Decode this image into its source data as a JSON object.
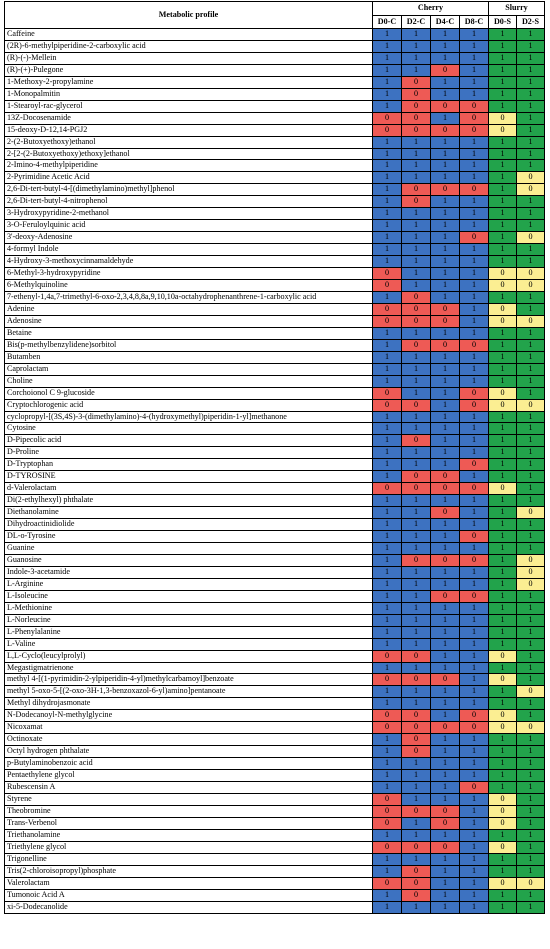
{
  "header": {
    "profile_label": "Metabolic profile",
    "cherry_label": "Cherry",
    "slurry_label": "Slurry",
    "columns": [
      "D0-C",
      "D2-C",
      "D4-C",
      "D8-C",
      "D0-S",
      "D2-S"
    ]
  },
  "colors": {
    "one_cherry": "#3d72c1",
    "zero_cherry": "#ee5a55",
    "one_slurry": "#22a34b",
    "zero_slurry": "#fbee92"
  },
  "rows": [
    {
      "name": "Caffeine",
      "values": [
        "1",
        "1",
        "1",
        "1",
        "1",
        "1"
      ]
    },
    {
      "name": "(2R)-6-methylpiperidine-2-carboxylic acid",
      "values": [
        "1",
        "1",
        "1",
        "1",
        "1",
        "1"
      ]
    },
    {
      "name": "(R)-(-)-Mellein",
      "values": [
        "1",
        "1",
        "1",
        "1",
        "1",
        "1"
      ]
    },
    {
      "name": "(R)-(+)-Pulegone",
      "values": [
        "1",
        "1",
        "0",
        "1",
        "1",
        "1"
      ]
    },
    {
      "name": "1-Methoxy-2-propylamine",
      "values": [
        "1",
        "0",
        "1",
        "1",
        "1",
        "1"
      ]
    },
    {
      "name": "1-Monopalmitin",
      "values": [
        "1",
        "0",
        "1",
        "1",
        "1",
        "1"
      ]
    },
    {
      "name": "1-Stearoyl-rac-glycerol",
      "values": [
        "1",
        "0",
        "0",
        "0",
        "1",
        "1"
      ]
    },
    {
      "name": "13Z-Docosenamide",
      "values": [
        "0",
        "0",
        "1",
        "0",
        "0",
        "1"
      ]
    },
    {
      "name": "15-deoxy-D-12,14-PGJ2",
      "values": [
        "0",
        "0",
        "0",
        "0",
        "0",
        "1"
      ]
    },
    {
      "name": "2-(2-Butoxyethoxy)ethanol",
      "values": [
        "1",
        "1",
        "1",
        "1",
        "1",
        "1"
      ]
    },
    {
      "name": "2-[2-(2-Butoxyethoxy)ethoxy]ethanol",
      "values": [
        "1",
        "1",
        "1",
        "1",
        "1",
        "1"
      ]
    },
    {
      "name": "2-Imino-4-methylpiperidine",
      "values": [
        "1",
        "1",
        "1",
        "1",
        "1",
        "1"
      ]
    },
    {
      "name": "2-Pyrimidine Acetic Acid",
      "values": [
        "1",
        "1",
        "1",
        "1",
        "1",
        "0"
      ]
    },
    {
      "name": "2,6-Di-tert-butyl-4-[(dimethylamino)methyl]phenol",
      "values": [
        "1",
        "0",
        "0",
        "0",
        "1",
        "0"
      ]
    },
    {
      "name": "2,6-Di-tert-butyl-4-nitrophenol",
      "values": [
        "1",
        "0",
        "1",
        "1",
        "1",
        "1"
      ]
    },
    {
      "name": "3-Hydroxypyridine-2-methanol",
      "values": [
        "1",
        "1",
        "1",
        "1",
        "1",
        "1"
      ]
    },
    {
      "name": "3-O-Feruloylquinic acid",
      "values": [
        "1",
        "1",
        "1",
        "1",
        "1",
        "1"
      ]
    },
    {
      "name": "3'-deoxy-Adenosine",
      "values": [
        "1",
        "1",
        "1",
        "0",
        "1",
        "0"
      ]
    },
    {
      "name": "4-formyl Indole",
      "values": [
        "1",
        "1",
        "1",
        "1",
        "1",
        "1"
      ]
    },
    {
      "name": "4-Hydroxy-3-methoxycinnamaldehyde",
      "values": [
        "1",
        "1",
        "1",
        "1",
        "1",
        "1"
      ]
    },
    {
      "name": "6-Methyl-3-hydroxypyridine",
      "values": [
        "0",
        "1",
        "1",
        "1",
        "0",
        "0"
      ]
    },
    {
      "name": "6-Methylquinoline",
      "values": [
        "0",
        "1",
        "1",
        "1",
        "0",
        "0"
      ]
    },
    {
      "name": "7-ethenyl-1,4a,7-trimethyl-6-oxo-2,3,4,8,8a,9,10,10a-octahydrophenanthrene-1-carboxylic acid",
      "values": [
        "1",
        "0",
        "1",
        "1",
        "1",
        "1"
      ]
    },
    {
      "name": "Adenine",
      "values": [
        "0",
        "0",
        "0",
        "1",
        "0",
        "1"
      ]
    },
    {
      "name": "Adenosine",
      "values": [
        "0",
        "0",
        "0",
        "1",
        "0",
        "0"
      ]
    },
    {
      "name": "Betaine",
      "values": [
        "1",
        "1",
        "1",
        "1",
        "1",
        "1"
      ]
    },
    {
      "name": "Bis(p-methylbenzylidene)sorbitol",
      "values": [
        "1",
        "0",
        "0",
        "0",
        "1",
        "1"
      ]
    },
    {
      "name": "Butamben",
      "values": [
        "1",
        "1",
        "1",
        "1",
        "1",
        "1"
      ]
    },
    {
      "name": "Caprolactam",
      "values": [
        "1",
        "1",
        "1",
        "1",
        "1",
        "1"
      ]
    },
    {
      "name": "Choline",
      "values": [
        "1",
        "1",
        "1",
        "1",
        "1",
        "1"
      ]
    },
    {
      "name": "Corchoionol C 9-glucoside",
      "values": [
        "0",
        "1",
        "1",
        "0",
        "0",
        "1"
      ]
    },
    {
      "name": "Cryptochlorogenic acid",
      "values": [
        "0",
        "0",
        "1",
        "0",
        "0",
        "0"
      ]
    },
    {
      "name": "cyclopropyl-[(3S,4S)-3-(dimethylamino)-4-(hydroxymethyl)piperidin-1-yl]methanone",
      "values": [
        "1",
        "1",
        "1",
        "1",
        "1",
        "1"
      ]
    },
    {
      "name": "Cytosine",
      "values": [
        "1",
        "1",
        "1",
        "1",
        "1",
        "1"
      ]
    },
    {
      "name": "D-Pipecolic acid",
      "values": [
        "1",
        "0",
        "1",
        "1",
        "1",
        "1"
      ]
    },
    {
      "name": "D-Proline",
      "values": [
        "1",
        "1",
        "1",
        "1",
        "1",
        "1"
      ]
    },
    {
      "name": "D-Tryptophan",
      "values": [
        "1",
        "1",
        "1",
        "0",
        "1",
        "1"
      ]
    },
    {
      "name": "D-TYROSINE",
      "values": [
        "1",
        "0",
        "0",
        "1",
        "1",
        "1"
      ]
    },
    {
      "name": "d-Valerolactam",
      "values": [
        "0",
        "0",
        "0",
        "0",
        "0",
        "1"
      ]
    },
    {
      "name": "Di(2-ethylhexyl) phthalate",
      "values": [
        "1",
        "1",
        "1",
        "1",
        "1",
        "1"
      ]
    },
    {
      "name": "Diethanolamine",
      "values": [
        "1",
        "1",
        "0",
        "1",
        "1",
        "0"
      ]
    },
    {
      "name": "Dihydroactinidiolide",
      "values": [
        "1",
        "1",
        "1",
        "1",
        "1",
        "1"
      ]
    },
    {
      "name": "DL-o-Tyrosine",
      "values": [
        "1",
        "1",
        "1",
        "0",
        "1",
        "1"
      ]
    },
    {
      "name": "Guanine",
      "values": [
        "1",
        "1",
        "1",
        "1",
        "1",
        "1"
      ]
    },
    {
      "name": "Guanosine",
      "values": [
        "1",
        "0",
        "0",
        "0",
        "1",
        "0"
      ]
    },
    {
      "name": "Indole-3-acetamide",
      "values": [
        "1",
        "1",
        "1",
        "1",
        "1",
        "0"
      ]
    },
    {
      "name": "L-Arginine",
      "values": [
        "1",
        "1",
        "1",
        "1",
        "1",
        "0"
      ]
    },
    {
      "name": "L-Isoleucine",
      "values": [
        "1",
        "1",
        "0",
        "0",
        "1",
        "1"
      ]
    },
    {
      "name": "L-Methionine",
      "values": [
        "1",
        "1",
        "1",
        "1",
        "1",
        "1"
      ]
    },
    {
      "name": "L-Norleucine",
      "values": [
        "1",
        "1",
        "1",
        "1",
        "1",
        "1"
      ]
    },
    {
      "name": "L-Phenylalanine",
      "values": [
        "1",
        "1",
        "1",
        "1",
        "1",
        "1"
      ]
    },
    {
      "name": "L-Valine",
      "values": [
        "1",
        "1",
        "1",
        "1",
        "1",
        "1"
      ]
    },
    {
      "name": "L,L-Cyclo(leucylprolyl)",
      "values": [
        "0",
        "0",
        "1",
        "1",
        "0",
        "1"
      ]
    },
    {
      "name": "Megastigmatrienone",
      "values": [
        "1",
        "1",
        "1",
        "1",
        "1",
        "1"
      ]
    },
    {
      "name": "methyl 4-[(1-pyrimidin-2-ylpiperidin-4-yl)methylcarbamoyl]benzoate",
      "values": [
        "0",
        "0",
        "0",
        "1",
        "0",
        "1"
      ]
    },
    {
      "name": "methyl 5-oxo-5-[(2-oxo-3H-1,3-benzoxazol-6-yl)amino]pentanoate",
      "values": [
        "1",
        "1",
        "1",
        "1",
        "1",
        "0"
      ]
    },
    {
      "name": "Methyl dihydrojasmonate",
      "values": [
        "1",
        "1",
        "1",
        "1",
        "1",
        "1"
      ]
    },
    {
      "name": "N-Dodecanoyl-N-methylglycine",
      "values": [
        "0",
        "0",
        "1",
        "0",
        "0",
        "1"
      ]
    },
    {
      "name": "Nicoxamat",
      "values": [
        "0",
        "0",
        "0",
        "0",
        "0",
        "0"
      ]
    },
    {
      "name": "Octinoxate",
      "values": [
        "1",
        "0",
        "1",
        "1",
        "1",
        "1"
      ]
    },
    {
      "name": "Octyl hydrogen phthalate",
      "values": [
        "1",
        "0",
        "1",
        "1",
        "1",
        "1"
      ]
    },
    {
      "name": "p-Butylaminobenzoic acid",
      "values": [
        "1",
        "1",
        "1",
        "1",
        "1",
        "1"
      ]
    },
    {
      "name": "Pentaethylene glycol",
      "values": [
        "1",
        "1",
        "1",
        "1",
        "1",
        "1"
      ]
    },
    {
      "name": "Rubescensin A",
      "values": [
        "1",
        "1",
        "1",
        "0",
        "1",
        "1"
      ]
    },
    {
      "name": "Styrene",
      "values": [
        "0",
        "1",
        "1",
        "1",
        "0",
        "1"
      ]
    },
    {
      "name": "Theobromine",
      "values": [
        "0",
        "0",
        "0",
        "1",
        "0",
        "1"
      ]
    },
    {
      "name": "Trans-Verbenol",
      "values": [
        "0",
        "1",
        "0",
        "1",
        "0",
        "1"
      ]
    },
    {
      "name": "Triethanolamine",
      "values": [
        "1",
        "1",
        "1",
        "1",
        "1",
        "1"
      ]
    },
    {
      "name": "Triethylene glycol",
      "values": [
        "0",
        "0",
        "0",
        "1",
        "0",
        "1"
      ]
    },
    {
      "name": "Trigonelline",
      "values": [
        "1",
        "1",
        "1",
        "1",
        "1",
        "1"
      ]
    },
    {
      "name": "Tris(2-chloroisopropyl)phosphate",
      "values": [
        "1",
        "0",
        "1",
        "1",
        "1",
        "1"
      ]
    },
    {
      "name": "Valerolactam",
      "values": [
        "0",
        "0",
        "1",
        "1",
        "0",
        "0"
      ]
    },
    {
      "name": "Tumonoic Acid A",
      "values": [
        "1",
        "0",
        "1",
        "1",
        "1",
        "1"
      ]
    },
    {
      "name": "xi-5-Dodecanolide",
      "values": [
        "1",
        "1",
        "1",
        "1",
        "1",
        "1"
      ]
    }
  ]
}
